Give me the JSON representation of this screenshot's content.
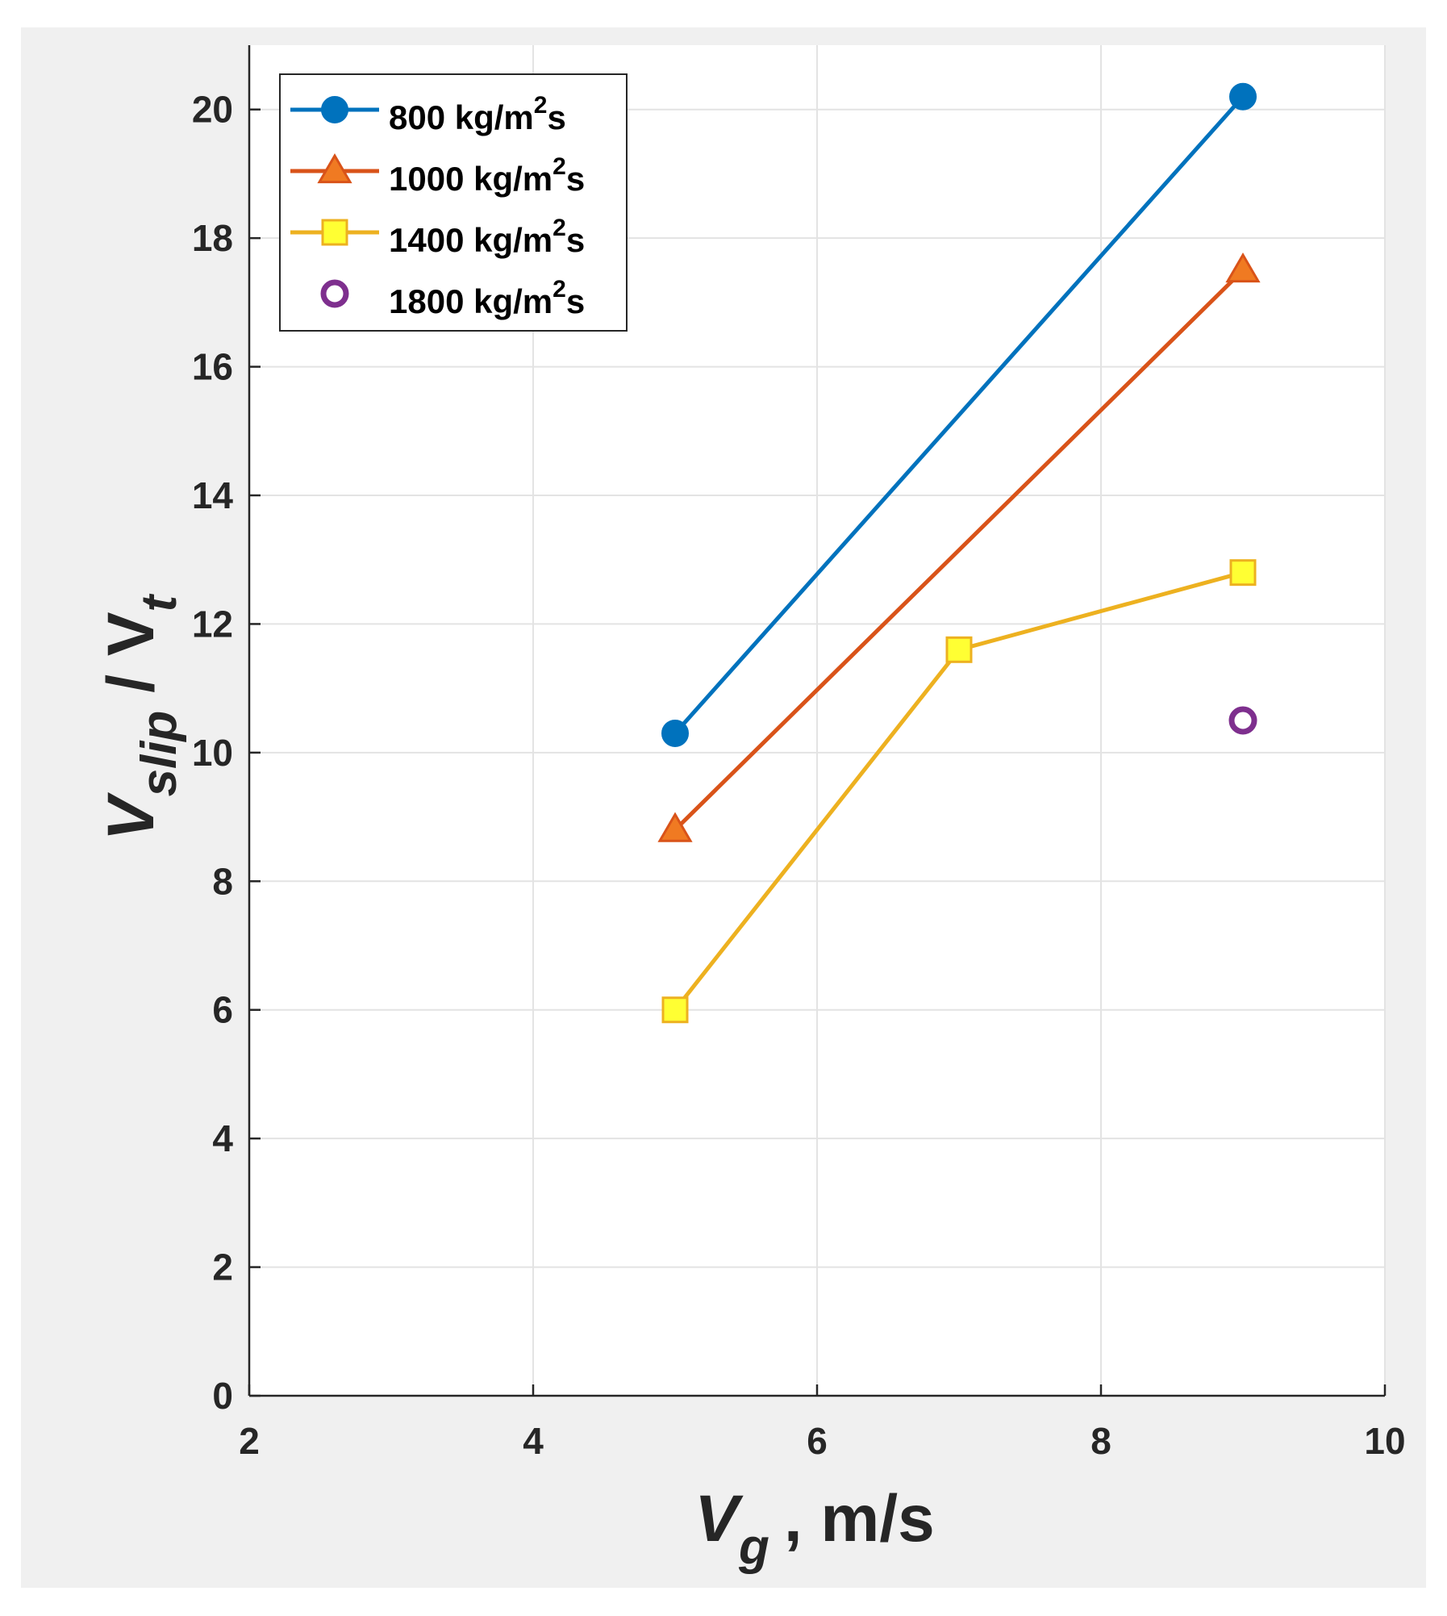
{
  "chart_data": {
    "type": "line",
    "title": "",
    "xlabel": {
      "main": "V",
      "sub": "g",
      "rest": ", m/s"
    },
    "ylabel": {
      "main": "V",
      "sub": "slip",
      "mid": "/ V",
      "sub2": "t"
    },
    "xlim": [
      2,
      10
    ],
    "ylim": [
      0,
      21
    ],
    "xticks": [
      2,
      4,
      6,
      8,
      10
    ],
    "yticks": [
      0,
      2,
      4,
      6,
      8,
      10,
      12,
      14,
      16,
      18,
      20
    ],
    "grid": true,
    "legend_position": "top-left",
    "series": [
      {
        "name": "800 kg/m2s",
        "label_main": "800 kg/m",
        "label_sup": "2",
        "label_end": "s",
        "color": "#0072BD",
        "fill": "#0072BD",
        "edge": "#0072BD",
        "marker": "circle",
        "line": true,
        "x": [
          5,
          9
        ],
        "y": [
          10.3,
          20.2
        ]
      },
      {
        "name": "1000 kg/m2s",
        "label_main": "1000 kg/m",
        "label_sup": "2",
        "label_end": "s",
        "color": "#D95319",
        "fill": "#F07A22",
        "edge": "#D95319",
        "marker": "triangle",
        "line": true,
        "x": [
          5,
          9
        ],
        "y": [
          8.8,
          17.5
        ]
      },
      {
        "name": "1400 kg/m2s",
        "label_main": "1400 kg/m",
        "label_sup": "2",
        "label_end": "s",
        "color": "#EDB120",
        "fill": "#FFFF33",
        "edge": "#EDB120",
        "marker": "square",
        "line": true,
        "x": [
          5,
          7,
          9
        ],
        "y": [
          6.0,
          11.6,
          12.8
        ]
      },
      {
        "name": "1800 kg/m2s",
        "label_main": "1800 kg/m",
        "label_sup": "2",
        "label_end": "s",
        "color": "#7E2F8E",
        "fill": "none",
        "edge": "#7E2F8E",
        "marker": "open-circle",
        "line": false,
        "x": [
          9
        ],
        "y": [
          10.5
        ]
      }
    ]
  }
}
